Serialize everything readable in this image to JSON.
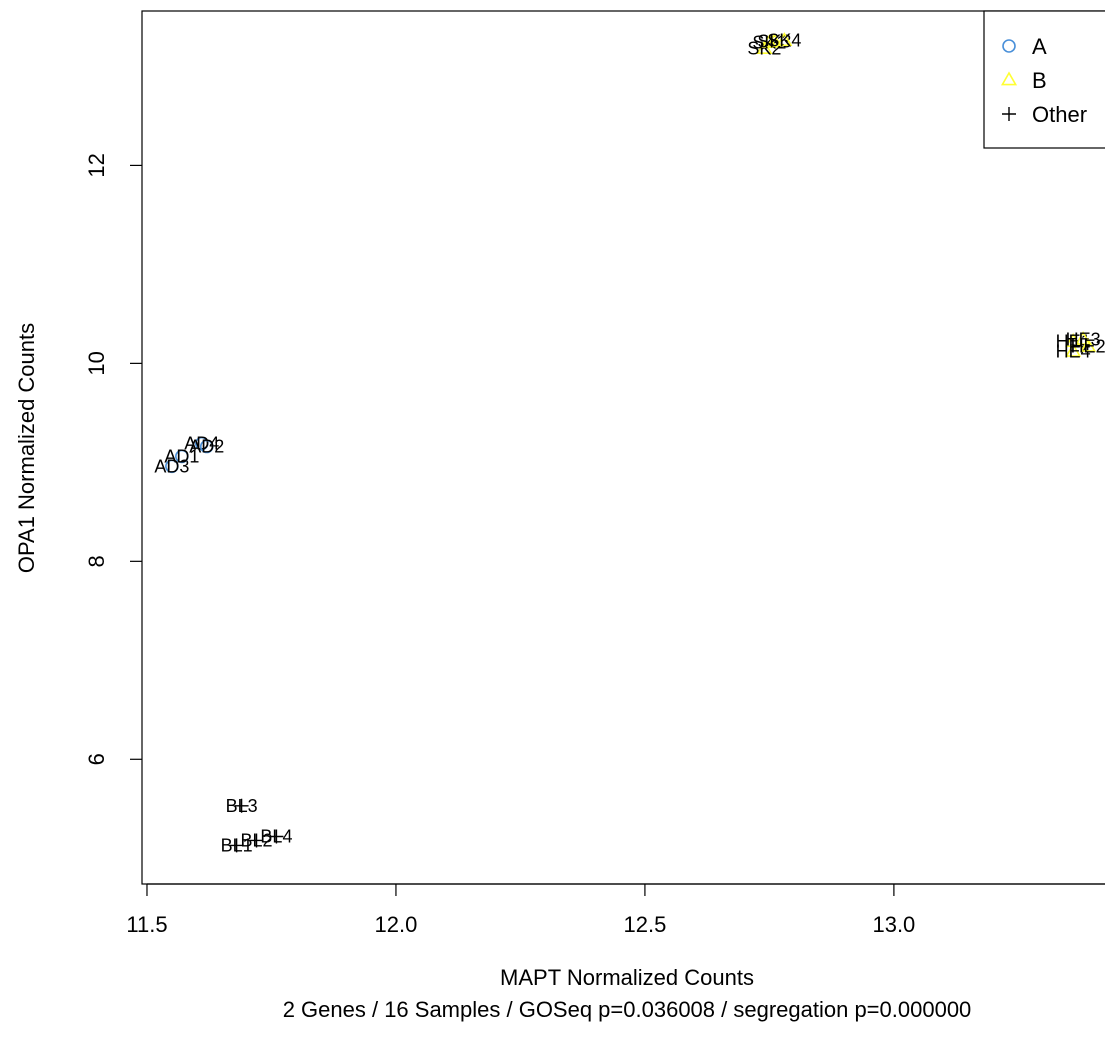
{
  "chart_data": {
    "type": "scatter",
    "xlabel": "MAPT Normalized Counts",
    "ylabel": "OPA1 Normalized Counts",
    "subtitle": "2 Genes / 16 Samples / GOSeq p=0.036008 / segregation p=0.000000",
    "xlim": [
      11.49,
      13.43
    ],
    "ylim": [
      4.74,
      13.56
    ],
    "x_ticks": [
      11.5,
      12.0,
      12.5,
      13.0
    ],
    "x_tick_labels": [
      "11.5",
      "12.0",
      "12.5",
      "13.0"
    ],
    "y_ticks": [
      6,
      8,
      10,
      12
    ],
    "y_tick_labels": [
      "6",
      "8",
      "10",
      "12"
    ],
    "grid": false,
    "legend_position": "top-right",
    "legend": [
      {
        "label": "A",
        "marker": "circle",
        "color": "#4a90d9"
      },
      {
        "label": "B",
        "marker": "triangle",
        "color": "#ffff33"
      },
      {
        "label": "Other",
        "marker": "plus",
        "color": "#000000"
      }
    ],
    "points": [
      {
        "label": "SK2",
        "x": 12.74,
        "y": 13.18,
        "group": "B"
      },
      {
        "label": "SK1",
        "x": 12.75,
        "y": 13.24,
        "group": "B"
      },
      {
        "label": "SK3",
        "x": 12.76,
        "y": 13.25,
        "group": "B"
      },
      {
        "label": "SK4",
        "x": 12.78,
        "y": 13.26,
        "group": "B"
      },
      {
        "label": "HE4",
        "x": 13.36,
        "y": 10.12,
        "group": "B"
      },
      {
        "label": "HE1",
        "x": 13.36,
        "y": 10.22,
        "group": "B"
      },
      {
        "label": "HE3",
        "x": 13.38,
        "y": 10.24,
        "group": "B"
      },
      {
        "label": "HE2",
        "x": 13.39,
        "y": 10.17,
        "group": "B"
      },
      {
        "label": "AD3",
        "x": 11.55,
        "y": 8.96,
        "group": "A"
      },
      {
        "label": "AD1",
        "x": 11.57,
        "y": 9.06,
        "group": "A"
      },
      {
        "label": "AD4",
        "x": 11.61,
        "y": 9.19,
        "group": "A"
      },
      {
        "label": "AD2",
        "x": 11.62,
        "y": 9.16,
        "group": "A"
      },
      {
        "label": "BL3",
        "x": 11.69,
        "y": 5.53,
        "group": "Other"
      },
      {
        "label": "BL1",
        "x": 11.68,
        "y": 5.13,
        "group": "Other"
      },
      {
        "label": "BL2",
        "x": 11.72,
        "y": 5.18,
        "group": "Other"
      },
      {
        "label": "BL4",
        "x": 11.76,
        "y": 5.22,
        "group": "Other"
      }
    ]
  }
}
